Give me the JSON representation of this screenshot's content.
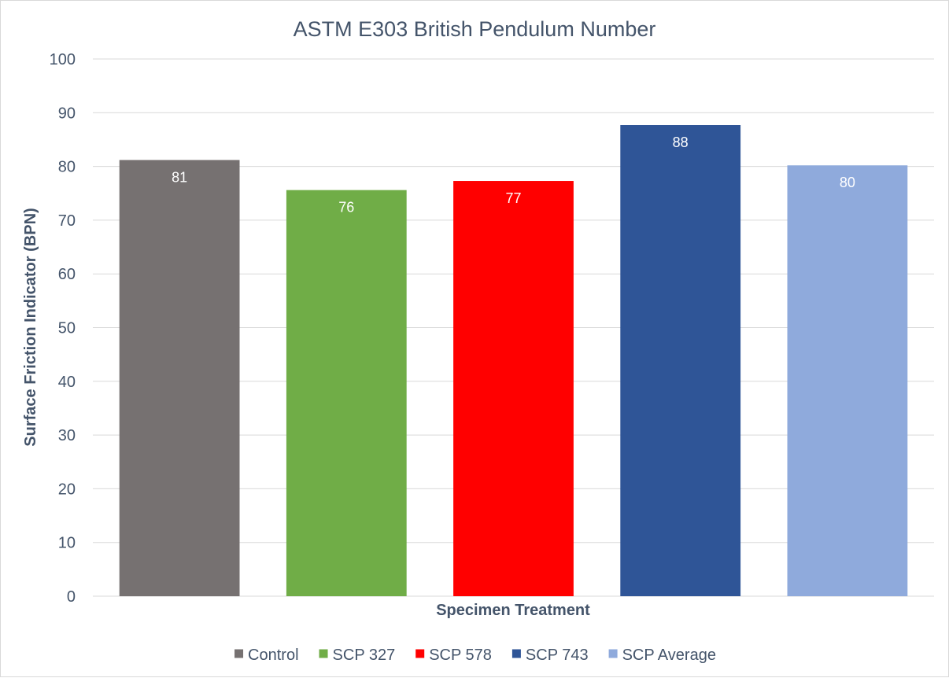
{
  "chart_data": {
    "type": "bar",
    "title": "ASTM E303 British Pendulum Number",
    "xlabel": "Specimen Treatment",
    "ylabel": "Surface Friction Indicator (BPN)",
    "ylim": [
      0,
      100
    ],
    "yticks": [
      0,
      10,
      20,
      30,
      40,
      50,
      60,
      70,
      80,
      90,
      100
    ],
    "grid": true,
    "legend_position": "bottom",
    "series": [
      {
        "name": "Control",
        "value": 81.2,
        "label": "81",
        "color": "#767171"
      },
      {
        "name": "SCP 327",
        "value": 75.6,
        "label": "76",
        "color": "#70ad47"
      },
      {
        "name": "SCP 578",
        "value": 77.3,
        "label": "77",
        "color": "#ff0000"
      },
      {
        "name": "SCP 743",
        "value": 87.7,
        "label": "88",
        "color": "#2f5597"
      },
      {
        "name": "SCP Average",
        "value": 80.2,
        "label": "80",
        "color": "#8faadc"
      }
    ]
  }
}
